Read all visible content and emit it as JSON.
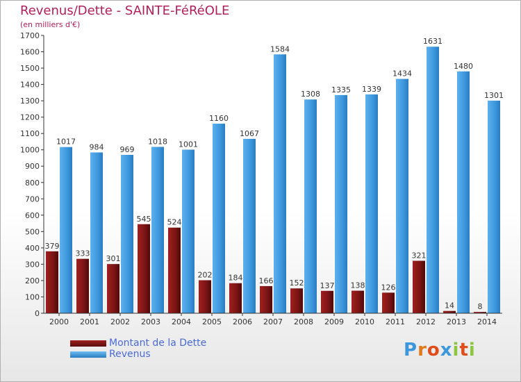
{
  "title": "Revenus/Dette - SAINTE-FéRéOLE",
  "subtitle": "(en milliers d'€)",
  "logo_text": "Proxiti",
  "chart_data": {
    "type": "bar",
    "categories": [
      "2000",
      "2001",
      "2002",
      "2003",
      "2004",
      "2005",
      "2006",
      "2007",
      "2008",
      "2009",
      "2010",
      "2011",
      "2012",
      "2013",
      "2014"
    ],
    "series": [
      {
        "name": "Montant de la Dette",
        "color": "#7a1414",
        "values": [
          379,
          333,
          301,
          545,
          524,
          202,
          184,
          166,
          152,
          137,
          138,
          126,
          321,
          14,
          8
        ]
      },
      {
        "name": "Revenus",
        "color": "#3d97dc",
        "values": [
          1017,
          984,
          969,
          1018,
          1001,
          1160,
          1067,
          1584,
          1308,
          1335,
          1339,
          1434,
          1631,
          1480,
          1301
        ]
      }
    ],
    "ylim": [
      0,
      1700
    ],
    "yticks": [
      0,
      100,
      200,
      300,
      400,
      500,
      600,
      700,
      800,
      900,
      1000,
      1100,
      1200,
      1300,
      1400,
      1500,
      1600,
      1700
    ],
    "grid": false,
    "legend_position": "bottom-left"
  }
}
